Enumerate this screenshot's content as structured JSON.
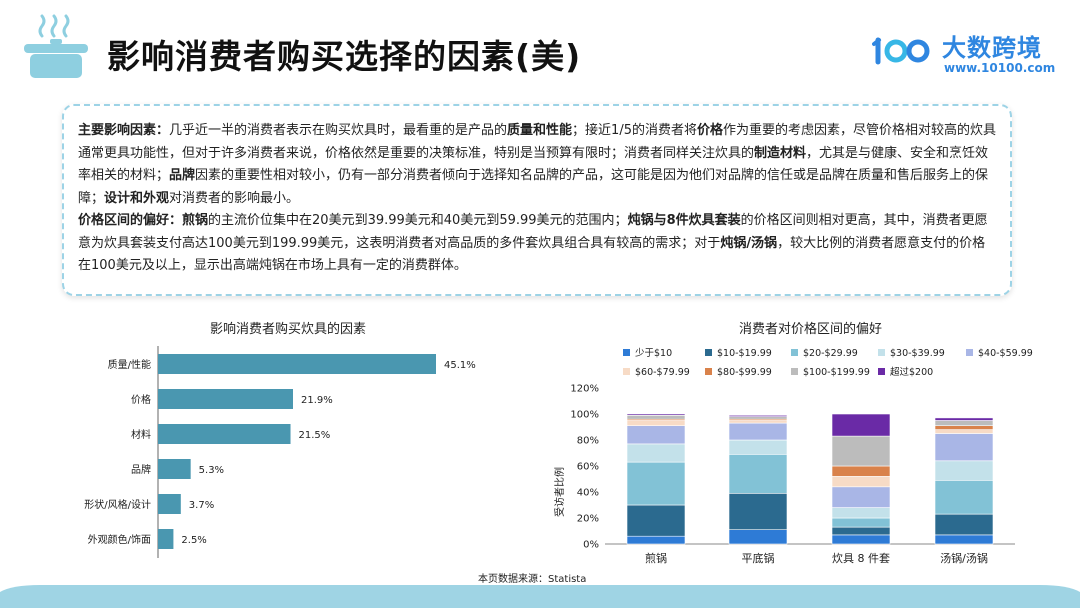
{
  "page": {
    "title": "影响消费者购买选择的因素(美)",
    "logo": {
      "name": "大数跨境",
      "url": "www.10100.com"
    },
    "source": "本页数据来源：Statista"
  },
  "summary": {
    "p1": [
      {
        "t": "主要影响因素：",
        "b": true
      },
      {
        "t": "几乎近一半的消费者表示在购买炊具时，最看重的是产品的",
        "b": false
      },
      {
        "t": "质量和性能",
        "b": true
      },
      {
        "t": "；接近1/5的消费者将",
        "b": false
      },
      {
        "t": "价格",
        "b": true
      },
      {
        "t": "作为重要的考虑因素，尽管价格相对较高的炊具通常更具功能性，但对于许多消费者来说，价格依然是重要的决策标准，特别是当预算有限时；消费者同样关注炊具的",
        "b": false
      },
      {
        "t": "制造材料",
        "b": true
      },
      {
        "t": "，尤其是与健康、安全和烹饪效率相关的材料；",
        "b": false
      },
      {
        "t": "品牌",
        "b": true
      },
      {
        "t": "因素的重要性相对较小，仍有一部分消费者倾向于选择知名品牌的产品，这可能是因为他们对品牌的信任或是品牌在质量和售后服务上的保障；",
        "b": false
      },
      {
        "t": "设计和外观",
        "b": true
      },
      {
        "t": "对消费者的影响最小。",
        "b": false
      }
    ],
    "p2": [
      {
        "t": "价格区间的偏好：",
        "b": true
      },
      {
        "t": "煎锅",
        "b": true
      },
      {
        "t": "的主流价位集中在20美元到39.99美元和40美元到59.99美元的范围内；",
        "b": false
      },
      {
        "t": "炖锅与8件炊具套装",
        "b": true
      },
      {
        "t": "的价格区间则相对更高，其中，消费者更愿意为炊具套装支付高达100美元到199.99美元，这表明消费者对高品质的多件套炊具组合具有较高的需求；对于",
        "b": false
      },
      {
        "t": "炖锅/汤锅",
        "b": true
      },
      {
        "t": "，较大比例的消费者愿意支付的价格在100美元及以上，显示出高端炖锅在市场上具有一定的消费群体。",
        "b": false
      }
    ]
  },
  "chart_data": [
    {
      "type": "bar",
      "orientation": "horizontal",
      "title": "影响消费者购买炊具的因素",
      "categories": [
        "质量/性能",
        "价格",
        "材料",
        "品牌",
        "形状/风格/设计",
        "外观颜色/饰面"
      ],
      "values": [
        45.1,
        21.9,
        21.5,
        5.3,
        3.7,
        2.5
      ],
      "value_labels": [
        "45.1%",
        "21.9%",
        "21.5%",
        "5.3%",
        "3.7%",
        "2.5%"
      ],
      "unit": "%",
      "color": "#4a97b0",
      "grid": false
    },
    {
      "type": "bar",
      "stacked": true,
      "title": "消费者对价格区间的偏好",
      "ylabel": "受访者比例",
      "ylim": [
        0,
        120
      ],
      "yticks": [
        0,
        20,
        40,
        60,
        80,
        100,
        120
      ],
      "ytick_labels": [
        "0%",
        "20%",
        "40%",
        "60%",
        "80%",
        "100%",
        "120%"
      ],
      "categories": [
        "煎锅",
        "平底锅",
        "炊具 8 件套",
        "汤锅/汤锅"
      ],
      "legend_position": "top",
      "grid": false,
      "series": [
        {
          "name": "少于$10",
          "color": "#2e7bd6",
          "values": [
            6,
            11,
            7,
            7
          ]
        },
        {
          "name": "$10-$19.99",
          "color": "#2b6a8f",
          "values": [
            24,
            28,
            6,
            16
          ]
        },
        {
          "name": "$20-$29.99",
          "color": "#82c2d6",
          "values": [
            33,
            30,
            7,
            26
          ]
        },
        {
          "name": "$30-$39.99",
          "color": "#c3e1ea",
          "values": [
            14,
            11,
            8,
            15
          ]
        },
        {
          "name": "$40-$59.99",
          "color": "#a9b6e6",
          "values": [
            14,
            13,
            16,
            21
          ]
        },
        {
          "name": "$60-$79.99",
          "color": "#f7dbc6",
          "values": [
            4,
            2,
            8,
            3
          ]
        },
        {
          "name": "$80-$99.99",
          "color": "#d9824b",
          "values": [
            1,
            1,
            8,
            3
          ]
        },
        {
          "name": "$100-$199.99",
          "color": "#bcbcbc",
          "values": [
            3,
            2,
            23,
            4
          ]
        },
        {
          "name": "超过$200",
          "color": "#6a2aa6",
          "values": [
            1,
            1,
            17,
            2
          ]
        }
      ]
    }
  ]
}
